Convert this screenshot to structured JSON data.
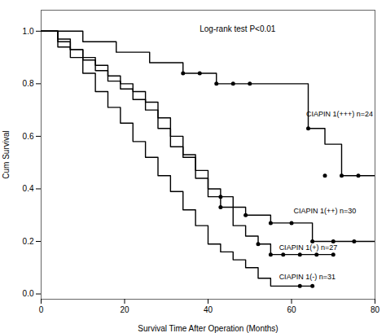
{
  "chart_data": {
    "type": "step",
    "xlabel": "Survival Time After Operation (Months)",
    "ylabel": "Cum Survival",
    "annotation": "Log-rank test P<0.01",
    "xlim": [
      0,
      80
    ],
    "ylim": [
      -0.02,
      1.08
    ],
    "xticks": [
      0,
      20,
      40,
      60,
      80
    ],
    "yticks": [
      {
        "value": 0.0,
        "label": "0.0"
      },
      0.2,
      0.4,
      0.6,
      0.8,
      {
        "value": 1.0,
        "label": "1.0"
      }
    ],
    "grid": false,
    "series": [
      {
        "name": "CIAPIN 1(+++) n=24",
        "color": "black",
        "x": [
          0,
          6,
          10,
          14,
          18,
          22,
          26,
          30,
          34,
          38,
          42,
          46,
          50,
          54,
          60,
          64,
          68,
          72,
          76,
          80
        ],
        "values": [
          1.0,
          1.0,
          0.96,
          0.96,
          0.92,
          0.92,
          0.88,
          0.88,
          0.84,
          0.84,
          0.8,
          0.8,
          0.8,
          0.8,
          0.8,
          0.63,
          0.57,
          0.45,
          0.45,
          0.45
        ],
        "censors_x": [
          34,
          38,
          42,
          46,
          50,
          64,
          68,
          72,
          76
        ],
        "censors_y": [
          0.84,
          0.84,
          0.8,
          0.8,
          0.8,
          0.63,
          0.45,
          0.45,
          0.45
        ]
      },
      {
        "name": "CIAPIN 1(++) n=30",
        "color": "black",
        "x": [
          0,
          4,
          7,
          10,
          13,
          16,
          19,
          22,
          25,
          28,
          31,
          34,
          37,
          40,
          43,
          46,
          49,
          55,
          60,
          65,
          70,
          75,
          80
        ],
        "values": [
          1.0,
          0.97,
          0.93,
          0.9,
          0.87,
          0.83,
          0.8,
          0.77,
          0.73,
          0.67,
          0.6,
          0.53,
          0.47,
          0.4,
          0.37,
          0.33,
          0.3,
          0.27,
          0.27,
          0.2,
          0.2,
          0.2,
          0.2
        ],
        "censors_x": [
          43,
          49,
          55,
          60,
          65,
          70,
          75
        ],
        "censors_y": [
          0.37,
          0.3,
          0.27,
          0.27,
          0.2,
          0.2,
          0.2
        ]
      },
      {
        "name": "CIAPIN 1(+) n=27",
        "color": "black",
        "x": [
          0,
          4,
          7,
          10,
          13,
          16,
          19,
          22,
          25,
          28,
          31,
          34,
          37,
          40,
          43,
          46,
          49,
          52,
          55,
          58,
          62,
          66,
          70
        ],
        "values": [
          1.0,
          0.96,
          0.93,
          0.89,
          0.85,
          0.81,
          0.78,
          0.74,
          0.7,
          0.63,
          0.56,
          0.52,
          0.44,
          0.37,
          0.33,
          0.26,
          0.22,
          0.19,
          0.15,
          0.15,
          0.15,
          0.15,
          0.15
        ],
        "censors_x": [
          43,
          52,
          55,
          58,
          62,
          66,
          70
        ],
        "censors_y": [
          0.33,
          0.19,
          0.15,
          0.15,
          0.15,
          0.15,
          0.15
        ]
      },
      {
        "name": "CIAPIN 1(-) n=31",
        "color": "black",
        "x": [
          0,
          4,
          7,
          10,
          13,
          16,
          19,
          22,
          25,
          28,
          31,
          34,
          37,
          40,
          43,
          46,
          49,
          52,
          55,
          58,
          62,
          65
        ],
        "values": [
          1.0,
          0.94,
          0.9,
          0.84,
          0.77,
          0.71,
          0.65,
          0.58,
          0.52,
          0.45,
          0.39,
          0.32,
          0.26,
          0.19,
          0.16,
          0.13,
          0.1,
          0.06,
          0.03,
          0.03,
          0.03,
          0.03
        ],
        "censors_x": [
          62,
          65
        ],
        "censors_y": [
          0.03,
          0.03
        ]
      }
    ]
  }
}
